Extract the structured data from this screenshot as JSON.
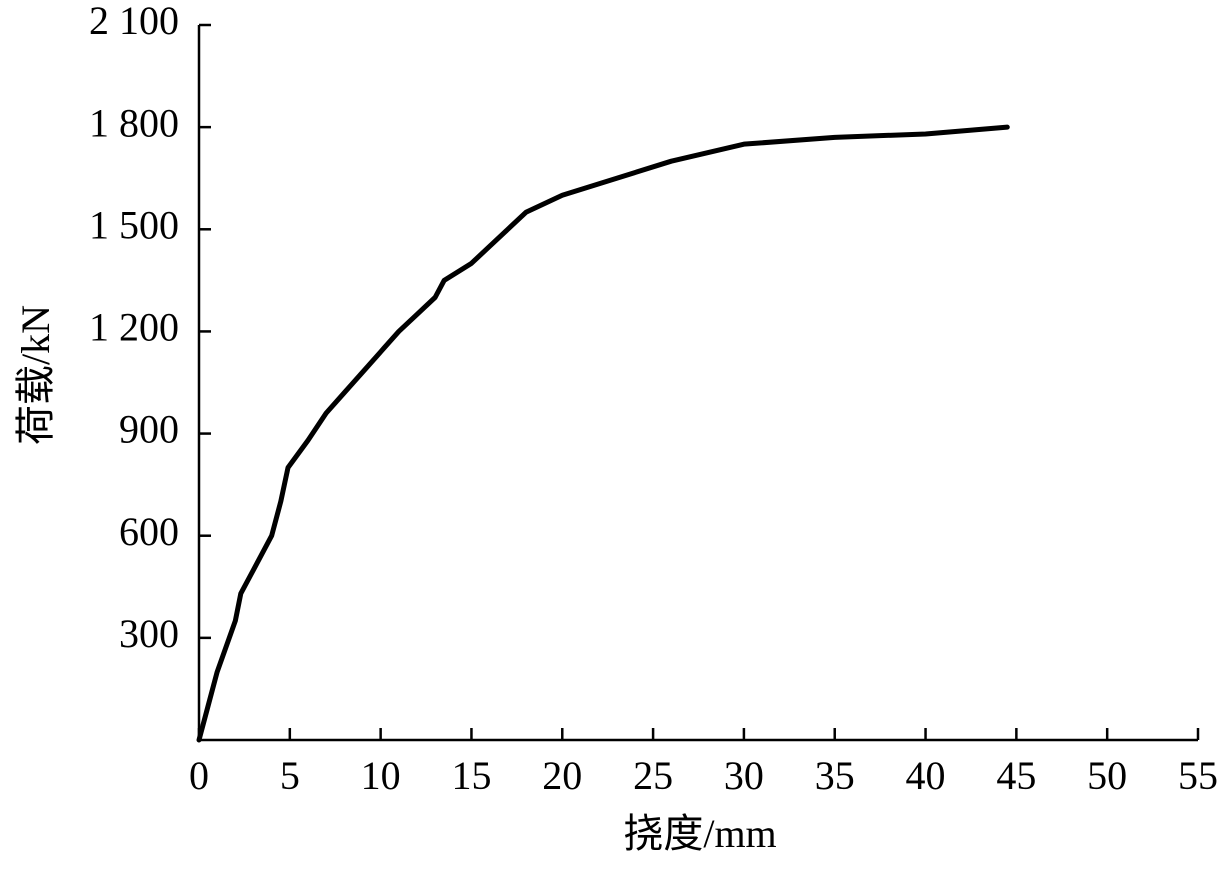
{
  "chart_data": {
    "type": "line",
    "x_label": "挠度/mm",
    "y_label": "荷载/kN",
    "x": [
      0,
      0.5,
      1,
      2,
      2.3,
      3,
      4,
      4.5,
      4.9,
      6,
      7,
      8,
      9,
      10,
      11,
      12,
      13,
      13.5,
      15,
      16,
      17,
      18,
      20,
      23,
      26,
      30,
      35,
      40,
      44.5
    ],
    "values": [
      0,
      100,
      200,
      350,
      430,
      500,
      600,
      700,
      800,
      880,
      960,
      1020,
      1080,
      1140,
      1200,
      1250,
      1300,
      1350,
      1400,
      1450,
      1500,
      1550,
      1600,
      1650,
      1700,
      1750,
      1770,
      1780,
      1800
    ],
    "color": "#000000",
    "xlim": [
      0,
      55
    ],
    "xticks": [
      0,
      5,
      10,
      15,
      20,
      25,
      30,
      35,
      40,
      45,
      50,
      55
    ],
    "ylim": [
      0,
      2100
    ],
    "yticks": [
      300,
      600,
      900,
      {
        "value": 1200,
        "label": "1 200"
      },
      {
        "value": 1500,
        "label": "1 500"
      },
      {
        "value": 1800,
        "label": "1 800"
      },
      {
        "value": 2100,
        "label": "2 100"
      }
    ]
  }
}
